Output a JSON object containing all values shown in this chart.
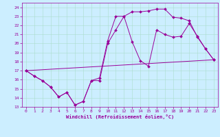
{
  "xlabel": "Windchill (Refroidissement éolien,°C)",
  "bg_color": "#cceeff",
  "grid_color": "#aaddcc",
  "line_color": "#990099",
  "xlim": [
    -0.5,
    23.5
  ],
  "ylim": [
    13,
    24.5
  ],
  "xticks": [
    0,
    1,
    2,
    3,
    4,
    5,
    6,
    7,
    8,
    9,
    10,
    11,
    12,
    13,
    14,
    15,
    16,
    17,
    18,
    19,
    20,
    21,
    22,
    23
  ],
  "yticks": [
    13,
    14,
    15,
    16,
    17,
    18,
    19,
    20,
    21,
    22,
    23,
    24
  ],
  "line1_x": [
    0,
    1,
    2,
    3,
    4,
    5,
    6,
    7,
    8,
    9,
    10,
    11,
    12,
    13,
    14,
    15,
    16,
    17,
    18,
    19,
    20,
    21,
    22,
    23
  ],
  "line1_y": [
    17.0,
    16.4,
    15.9,
    15.2,
    14.1,
    14.6,
    13.2,
    13.6,
    15.9,
    15.9,
    20.0,
    21.5,
    23.0,
    20.2,
    18.1,
    17.5,
    21.5,
    21.0,
    20.7,
    20.8,
    22.2,
    20.8,
    19.4,
    18.2
  ],
  "line2_x": [
    0,
    1,
    2,
    3,
    4,
    5,
    6,
    7,
    8,
    9,
    10,
    11,
    12,
    13,
    14,
    15,
    16,
    17,
    18,
    19,
    20,
    21,
    22,
    23
  ],
  "line2_y": [
    17.0,
    16.4,
    15.9,
    15.2,
    14.1,
    14.6,
    13.2,
    13.6,
    15.9,
    16.2,
    20.3,
    23.0,
    23.0,
    23.5,
    23.5,
    23.6,
    23.8,
    23.8,
    22.9,
    22.8,
    22.5,
    20.7,
    19.4,
    18.2
  ],
  "line3_x": [
    0,
    23
  ],
  "line3_y": [
    17.0,
    18.2
  ]
}
